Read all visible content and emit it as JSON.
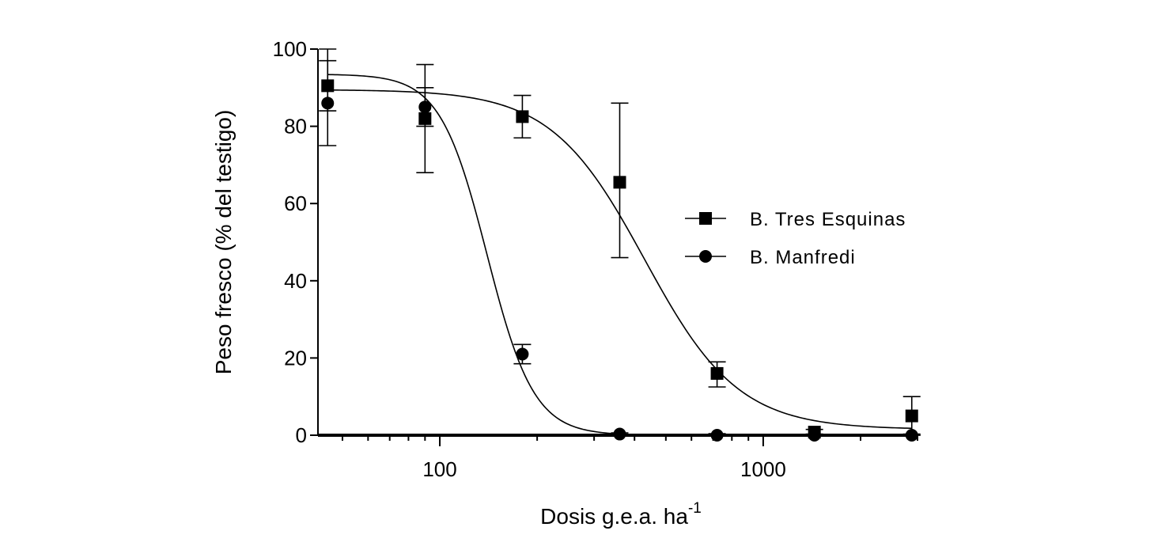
{
  "chart_data": {
    "type": "scatter",
    "title": "",
    "xlabel": "Dosis g.e.a. ha",
    "xlabel_sup": "-1",
    "ylabel": "Peso fresco (% del testigo)",
    "x_scale": "log",
    "xlim": [
      42,
      3000
    ],
    "ylim": [
      0,
      100
    ],
    "x_ticks": [
      {
        "value": 100,
        "label": "100"
      },
      {
        "value": 1000,
        "label": "1000"
      }
    ],
    "y_ticks": [
      {
        "value": 0,
        "label": "0"
      },
      {
        "value": 20,
        "label": "20"
      },
      {
        "value": 40,
        "label": "40"
      },
      {
        "value": 60,
        "label": "60"
      },
      {
        "value": 80,
        "label": "80"
      },
      {
        "value": 100,
        "label": "100"
      }
    ],
    "grid": false,
    "legend_position": "right",
    "series": [
      {
        "name": "B. Tres Esquinas",
        "marker": "square",
        "points": [
          {
            "x": 45,
            "y": 90.5,
            "err_low": 84,
            "err_high": 97
          },
          {
            "x": 90,
            "y": 82,
            "err_low": 80,
            "err_high": 90
          },
          {
            "x": 180,
            "y": 82.5,
            "err_low": 77,
            "err_high": 88
          },
          {
            "x": 360,
            "y": 65.5,
            "err_low": 46,
            "err_high": 86
          },
          {
            "x": 720,
            "y": 16,
            "err_low": 12.5,
            "err_high": 19
          },
          {
            "x": 1440,
            "y": 0.8,
            "err_low": 0,
            "err_high": 1.5
          },
          {
            "x": 2880,
            "y": 5,
            "err_low": 0,
            "err_high": 10
          }
        ],
        "curve": {
          "top": 89.5,
          "bottom": 1.5,
          "ec50": 430,
          "hill": 3.0
        }
      },
      {
        "name": "B. Manfredi",
        "marker": "circle",
        "points": [
          {
            "x": 45,
            "y": 86,
            "err_low": 75,
            "err_high": 100
          },
          {
            "x": 90,
            "y": 85,
            "err_low": 68,
            "err_high": 96
          },
          {
            "x": 180,
            "y": 21,
            "err_low": 18.5,
            "err_high": 23.5
          },
          {
            "x": 360,
            "y": 0.3,
            "err_low": 0,
            "err_high": 0.6
          },
          {
            "x": 720,
            "y": 0,
            "err_low": 0,
            "err_high": 0.4
          },
          {
            "x": 1440,
            "y": 0,
            "err_low": 0,
            "err_high": 0.3
          },
          {
            "x": 2880,
            "y": 0,
            "err_low": 0,
            "err_high": 0.3
          }
        ],
        "curve": {
          "top": 93.5,
          "bottom": 0,
          "ec50": 140,
          "hill": 6.0
        }
      }
    ]
  }
}
